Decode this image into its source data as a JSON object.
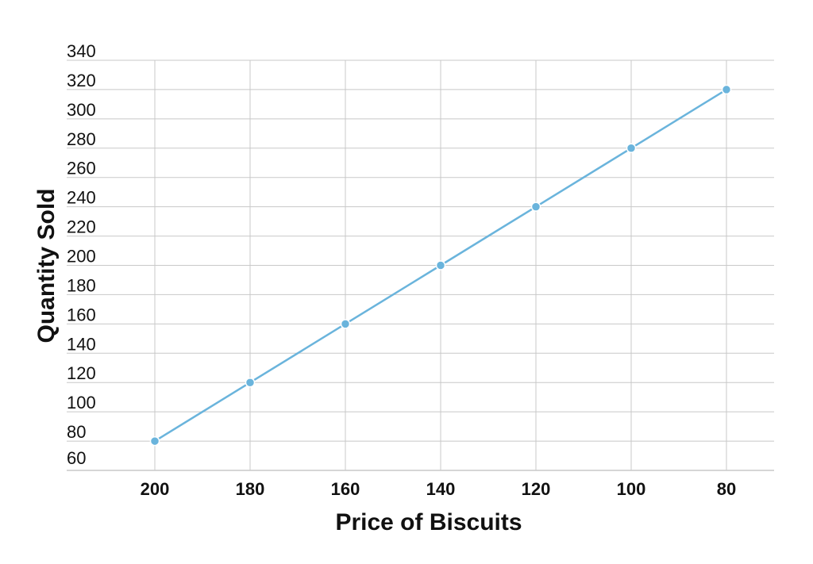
{
  "chart_data": {
    "type": "line",
    "title": "",
    "xlabel": "Price of Biscuits",
    "ylabel": "Quantity Sold",
    "x": [
      200,
      180,
      160,
      140,
      120,
      100,
      80
    ],
    "series": [
      {
        "values": [
          80,
          120,
          160,
          200,
          240,
          280,
          320
        ]
      }
    ],
    "xlim": [
      218.5,
      70
    ],
    "x_axis_reversed": true,
    "x_ticks": [
      "200",
      "180",
      "160",
      "140",
      "120",
      "100",
      "80"
    ],
    "ylim": [
      60,
      340
    ],
    "y_ticks": [
      "60",
      "80",
      "100",
      "120",
      "140",
      "160",
      "180",
      "200",
      "220",
      "240",
      "260",
      "280",
      "300",
      "320",
      "340"
    ],
    "grid": true,
    "legend": "none",
    "colors": {
      "line": "#6ab4dc",
      "marker": "#6ab4dc",
      "grid": "#c8c8c8",
      "text": "#111111"
    }
  }
}
